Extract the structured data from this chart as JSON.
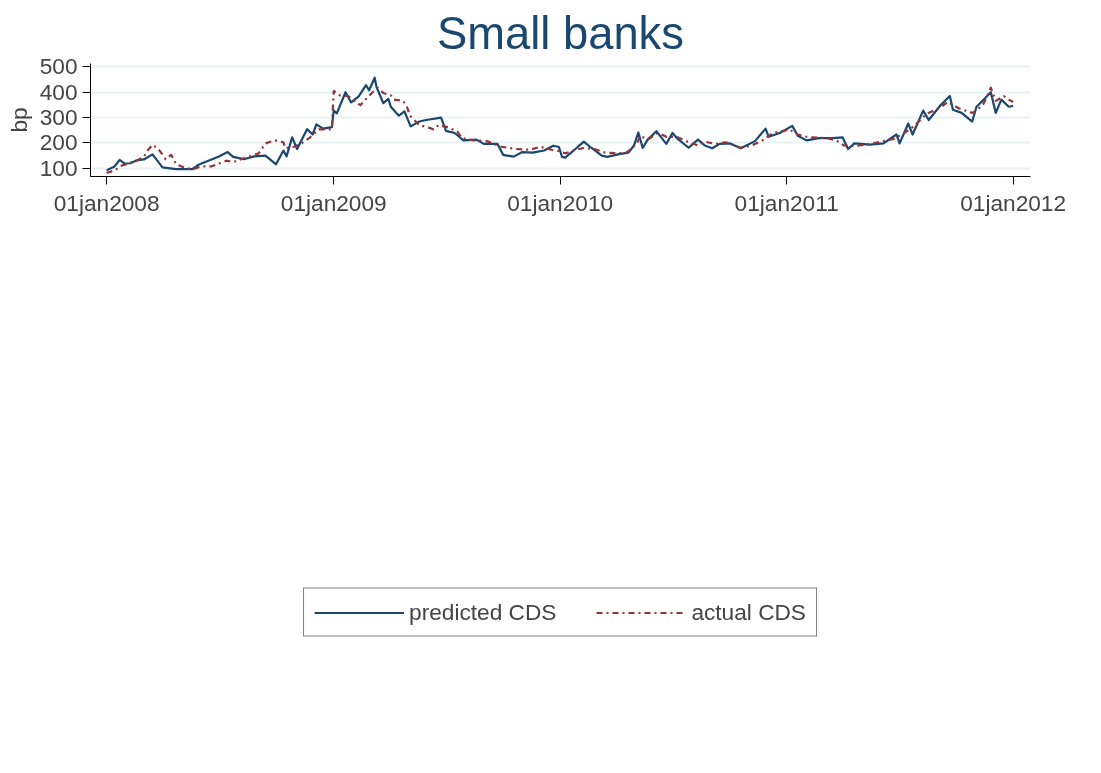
{
  "chart_data": {
    "type": "line",
    "title": "Small banks",
    "ylabel": "bp",
    "xlim": [
      "2007-12-06",
      "2012-01-29"
    ],
    "ylim": [
      68,
      512
    ],
    "xticks": [
      {
        "value": "2008-01-01",
        "label": "01jan2008"
      },
      {
        "value": "2009-01-01",
        "label": "01jan2009"
      },
      {
        "value": "2010-01-01",
        "label": "01jan2010"
      },
      {
        "value": "2011-01-01",
        "label": "01jan2011"
      },
      {
        "value": "2012-01-01",
        "label": "01jan2012"
      }
    ],
    "yticks": [
      100,
      200,
      300,
      400,
      500
    ],
    "grid": "y",
    "legend": "bottom",
    "marker": "none",
    "series": [
      {
        "name": "predicted CDS",
        "color": "#1a476f",
        "line_style": "solid",
        "x": [
          "2008-01-01",
          "2008-01-13",
          "2008-01-22",
          "2008-01-30",
          "2008-02-08",
          "2008-02-18",
          "2008-03-01",
          "2008-03-15",
          "2008-03-31",
          "2008-04-22",
          "2008-05-18",
          "2008-05-27",
          "2008-06-30",
          "2008-07-14",
          "2008-07-23",
          "2008-08-09",
          "2008-08-26",
          "2008-09-13",
          "2008-09-30",
          "2008-10-12",
          "2008-10-17",
          "2008-10-26",
          "2008-11-03",
          "2008-11-19",
          "2008-11-28",
          "2008-12-04",
          "2008-12-15",
          "2008-12-29",
          "2009-01-01",
          "2009-01-06",
          "2009-01-20",
          "2009-01-29",
          "2009-02-10",
          "2009-02-22",
          "2009-02-27",
          "2009-03-08",
          "2009-03-11",
          "2009-03-22",
          "2009-03-30",
          "2009-04-03",
          "2009-04-16",
          "2009-04-25",
          "2009-05-05",
          "2009-05-19",
          "2009-05-30",
          "2009-06-23",
          "2009-07-01",
          "2009-07-15",
          "2009-07-29",
          "2009-08-19",
          "2009-08-31",
          "2009-09-22",
          "2009-10-01",
          "2009-10-18",
          "2009-11-01",
          "2009-11-18",
          "2009-12-06",
          "2009-12-21",
          "2009-12-30",
          "2010-01-04",
          "2010-01-09",
          "2010-01-26",
          "2010-02-08",
          "2010-02-20",
          "2010-03-09",
          "2010-03-18",
          "2010-04-06",
          "2010-04-21",
          "2010-04-30",
          "2010-05-07",
          "2010-05-14",
          "2010-05-22",
          "2010-06-05",
          "2010-06-21",
          "2010-07-01",
          "2010-07-08",
          "2010-07-27",
          "2010-08-11",
          "2010-08-22",
          "2010-09-03",
          "2010-09-15",
          "2010-10-02",
          "2010-10-19",
          "2010-11-11",
          "2010-11-28",
          "2010-12-03",
          "2010-12-21",
          "2011-01-10",
          "2011-01-19",
          "2011-02-02",
          "2011-02-22",
          "2011-03-17",
          "2011-04-01",
          "2011-04-10",
          "2011-04-20",
          "2011-05-15",
          "2011-06-06",
          "2011-06-27",
          "2011-07-02",
          "2011-07-16",
          "2011-07-23",
          "2011-08-09",
          "2011-08-18",
          "2011-09-06",
          "2011-09-21",
          "2011-09-26",
          "2011-10-10",
          "2011-10-27",
          "2011-11-03",
          "2011-11-17",
          "2011-11-26",
          "2011-12-04",
          "2011-12-13",
          "2011-12-25",
          "2012-01-01"
        ],
        "values": [
          93,
          106,
          133,
          119,
          120,
          131,
          135,
          155,
          104,
          97,
          97,
          113,
          147,
          164,
          145,
          136,
          147,
          150,
          116,
          170,
          147,
          222,
          176,
          254,
          233,
          273,
          256,
          262,
          327,
          316,
          399,
          359,
          382,
          427,
          407,
          456,
          419,
          356,
          373,
          342,
          307,
          324,
          265,
          284,
          290,
          299,
          247,
          239,
          210,
          213,
          196,
          196,
          153,
          146,
          164,
          162,
          170,
          189,
          184,
          145,
          142,
          177,
          205,
          181,
          150,
          145,
          156,
          162,
          190,
          241,
          180,
          213,
          246,
          196,
          239,
          219,
          181,
          213,
          190,
          179,
          196,
          198,
          179,
          207,
          256,
          224,
          239,
          267,
          228,
          210,
          219,
          219,
          222,
          176,
          198,
          193,
          198,
          233,
          198,
          276,
          233,
          327,
          290,
          348,
          384,
          330,
          318,
          284,
          342,
          376,
          399,
          318,
          370,
          342,
          345
        ]
      },
      {
        "name": "actual CDS",
        "color": "#90353b",
        "line_style": "dashdot",
        "x": [
          "2008-01-01",
          "2008-01-15",
          "2008-01-22",
          "2008-02-05",
          "2008-02-18",
          "2008-03-01",
          "2008-03-07",
          "2008-03-15",
          "2008-03-22",
          "2008-03-27",
          "2008-04-05",
          "2008-04-14",
          "2008-04-22",
          "2008-05-04",
          "2008-05-18",
          "2008-06-01",
          "2008-06-18",
          "2008-07-12",
          "2008-07-23",
          "2008-08-09",
          "2008-09-02",
          "2008-09-13",
          "2008-09-28",
          "2008-10-12",
          "2008-10-15",
          "2008-10-29",
          "2008-11-10",
          "2008-11-24",
          "2008-12-08",
          "2008-12-29",
          "2009-01-01",
          "2009-01-11",
          "2009-01-24",
          "2009-02-13",
          "2009-02-24",
          "2009-03-08",
          "2009-03-13",
          "2009-03-22",
          "2009-04-03",
          "2009-04-08",
          "2009-04-23",
          "2009-04-29",
          "2009-05-04",
          "2009-05-19",
          "2009-06-06",
          "2009-06-11",
          "2009-06-19",
          "2009-07-03",
          "2009-07-19",
          "2009-07-27",
          "2009-08-14",
          "2009-09-05",
          "2009-09-28",
          "2009-10-22",
          "2009-11-13",
          "2009-11-30",
          "2009-12-18",
          "2009-12-30",
          "2010-01-09",
          "2010-01-26",
          "2010-02-08",
          "2010-02-25",
          "2010-03-14",
          "2010-04-06",
          "2010-04-18",
          "2010-05-05",
          "2010-05-10",
          "2010-05-22",
          "2010-06-08",
          "2010-06-21",
          "2010-07-08",
          "2010-07-25",
          "2010-08-11",
          "2010-08-22",
          "2010-09-08",
          "2010-09-25",
          "2010-10-19",
          "2010-11-06",
          "2010-11-23",
          "2010-12-10",
          "2010-12-27",
          "2011-01-05",
          "2011-01-19",
          "2011-02-05",
          "2011-03-07",
          "2011-03-24",
          "2011-04-03",
          "2011-04-20",
          "2011-05-15",
          "2011-06-06",
          "2011-06-23",
          "2011-07-11",
          "2011-07-23",
          "2011-08-02",
          "2011-08-14",
          "2011-08-26",
          "2011-09-06",
          "2011-09-18",
          "2011-10-05",
          "2011-10-27",
          "2011-11-03",
          "2011-11-14",
          "2011-11-22",
          "2011-11-26",
          "2011-12-04",
          "2011-12-17",
          "2011-12-25",
          "2012-01-01"
        ],
        "values": [
          82,
          93,
          108,
          119,
          130,
          145,
          170,
          193,
          181,
          168,
          136,
          153,
          116,
          104,
          96,
          108,
          108,
          130,
          125,
          139,
          159,
          198,
          210,
          202,
          179,
          185,
          198,
          222,
          253,
          253,
          404,
          387,
          384,
          348,
          378,
          407,
          416,
          396,
          387,
          370,
          365,
          342,
          307,
          270,
          258,
          253,
          270,
          262,
          245,
          219,
          210,
          207,
          185,
          176,
          173,
          185,
          173,
          168,
          159,
          173,
          180,
          176,
          162,
          159,
          162,
          198,
          228,
          213,
          239,
          224,
          224,
          205,
          190,
          205,
          196,
          202,
          181,
          190,
          210,
          239,
          247,
          253,
          233,
          222,
          219,
          207,
          190,
          187,
          196,
          207,
          216,
          241,
          262,
          284,
          313,
          327,
          339,
          362,
          336,
          318,
          327,
          353,
          393,
          417,
          365,
          384,
          370,
          361
        ]
      }
    ]
  }
}
